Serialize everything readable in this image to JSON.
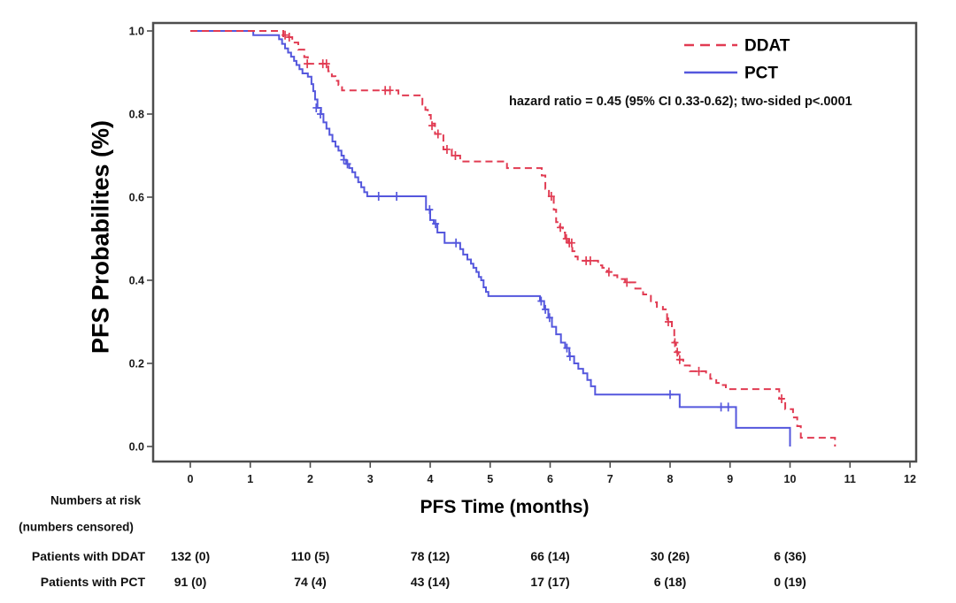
{
  "figure": {
    "ylabel": "PFS Probabilites (%)",
    "xlabel": "PFS Time (months)",
    "annotation": "hazard ratio = 0.45 (95% CI 0.33-0.62); two-sided p<.0001"
  },
  "chart_data": {
    "type": "line",
    "subtype": "kaplan-meier-step",
    "title": "",
    "xlabel": "PFS Time (months)",
    "ylabel": "PFS Probabilites (%)",
    "xlim": [
      0,
      12
    ],
    "ylim": [
      0,
      1
    ],
    "xticks": [
      0,
      1,
      2,
      3,
      4,
      5,
      6,
      7,
      8,
      9,
      10,
      11,
      12
    ],
    "yticks": [
      0.0,
      0.2,
      0.4,
      0.6,
      0.8,
      1.0
    ],
    "ytick_labels": [
      "0.0",
      "0.2",
      "0.4",
      "0.6",
      "0.8",
      "1.0"
    ],
    "grid": false,
    "legend_position": "top-right-inside",
    "annotation": "hazard ratio = 0.45 (95% CI 0.33-0.62); two-sided p<.0001",
    "axis_color": "#4d4d4d",
    "series": [
      {
        "name": "DDAT",
        "color": "#e13b52",
        "line": "dashed",
        "steps": [
          [
            0,
            1.0
          ],
          [
            1.55,
            0.985
          ],
          [
            1.7,
            0.972
          ],
          [
            1.8,
            0.955
          ],
          [
            1.9,
            0.937
          ],
          [
            1.96,
            0.921
          ],
          [
            2.3,
            0.903
          ],
          [
            2.36,
            0.891
          ],
          [
            2.42,
            0.88
          ],
          [
            2.47,
            0.87
          ],
          [
            2.53,
            0.857
          ],
          [
            3.47,
            0.845
          ],
          [
            3.87,
            0.823
          ],
          [
            3.92,
            0.81
          ],
          [
            3.96,
            0.798
          ],
          [
            4.01,
            0.777
          ],
          [
            4.08,
            0.752
          ],
          [
            4.22,
            0.715
          ],
          [
            4.36,
            0.7
          ],
          [
            4.5,
            0.686
          ],
          [
            5.28,
            0.67
          ],
          [
            5.86,
            0.652
          ],
          [
            5.92,
            0.62
          ],
          [
            5.98,
            0.602
          ],
          [
            6.06,
            0.57
          ],
          [
            6.1,
            0.54
          ],
          [
            6.16,
            0.527
          ],
          [
            6.21,
            0.515
          ],
          [
            6.25,
            0.5
          ],
          [
            6.3,
            0.49
          ],
          [
            6.37,
            0.47
          ],
          [
            6.42,
            0.457
          ],
          [
            6.46,
            0.447
          ],
          [
            6.8,
            0.436
          ],
          [
            6.87,
            0.43
          ],
          [
            6.95,
            0.42
          ],
          [
            7.05,
            0.412
          ],
          [
            7.12,
            0.403
          ],
          [
            7.25,
            0.395
          ],
          [
            7.42,
            0.38
          ],
          [
            7.55,
            0.366
          ],
          [
            7.68,
            0.347
          ],
          [
            7.78,
            0.336
          ],
          [
            7.88,
            0.33
          ],
          [
            7.95,
            0.3
          ],
          [
            8.03,
            0.287
          ],
          [
            8.07,
            0.25
          ],
          [
            8.1,
            0.227
          ],
          [
            8.14,
            0.209
          ],
          [
            8.22,
            0.195
          ],
          [
            8.33,
            0.181
          ],
          [
            8.6,
            0.174
          ],
          [
            8.67,
            0.163
          ],
          [
            8.77,
            0.153
          ],
          [
            8.85,
            0.148
          ],
          [
            8.93,
            0.138
          ],
          [
            9.82,
            0.115
          ],
          [
            9.92,
            0.09
          ],
          [
            10.05,
            0.07
          ],
          [
            10.12,
            0.049
          ],
          [
            10.18,
            0.021
          ],
          [
            10.75,
            0
          ]
        ],
        "censors": [
          [
            1.58,
            0.99
          ],
          [
            1.65,
            0.985
          ],
          [
            1.95,
            0.921
          ],
          [
            2.21,
            0.921
          ],
          [
            2.27,
            0.921
          ],
          [
            3.25,
            0.857
          ],
          [
            3.33,
            0.857
          ],
          [
            4.03,
            0.772
          ],
          [
            4.13,
            0.752
          ],
          [
            4.28,
            0.715
          ],
          [
            4.42,
            0.7
          ],
          [
            6.02,
            0.602
          ],
          [
            6.17,
            0.527
          ],
          [
            6.27,
            0.5
          ],
          [
            6.32,
            0.49
          ],
          [
            6.36,
            0.49
          ],
          [
            6.6,
            0.447
          ],
          [
            6.67,
            0.447
          ],
          [
            6.98,
            0.42
          ],
          [
            7.28,
            0.395
          ],
          [
            7.97,
            0.3
          ],
          [
            8.08,
            0.25
          ],
          [
            8.12,
            0.227
          ],
          [
            8.16,
            0.209
          ],
          [
            8.48,
            0.181
          ],
          [
            9.86,
            0.115
          ]
        ]
      },
      {
        "name": "PCT",
        "color": "#5457dd",
        "line": "solid",
        "steps": [
          [
            0,
            1.0
          ],
          [
            1.05,
            0.99
          ],
          [
            1.48,
            0.98
          ],
          [
            1.53,
            0.969
          ],
          [
            1.58,
            0.958
          ],
          [
            1.63,
            0.948
          ],
          [
            1.68,
            0.938
          ],
          [
            1.73,
            0.928
          ],
          [
            1.77,
            0.918
          ],
          [
            1.82,
            0.908
          ],
          [
            1.87,
            0.898
          ],
          [
            1.96,
            0.89
          ],
          [
            2.02,
            0.872
          ],
          [
            2.05,
            0.855
          ],
          [
            2.08,
            0.835
          ],
          [
            2.12,
            0.815
          ],
          [
            2.18,
            0.8
          ],
          [
            2.22,
            0.78
          ],
          [
            2.27,
            0.765
          ],
          [
            2.32,
            0.75
          ],
          [
            2.37,
            0.734
          ],
          [
            2.42,
            0.722
          ],
          [
            2.47,
            0.712
          ],
          [
            2.52,
            0.7
          ],
          [
            2.56,
            0.69
          ],
          [
            2.6,
            0.68
          ],
          [
            2.65,
            0.67
          ],
          [
            2.7,
            0.66
          ],
          [
            2.75,
            0.648
          ],
          [
            2.8,
            0.636
          ],
          [
            2.85,
            0.624
          ],
          [
            2.9,
            0.612
          ],
          [
            2.95,
            0.602
          ],
          [
            3.93,
            0.57
          ],
          [
            4.0,
            0.545
          ],
          [
            4.06,
            0.536
          ],
          [
            4.12,
            0.515
          ],
          [
            4.24,
            0.49
          ],
          [
            4.5,
            0.475
          ],
          [
            4.55,
            0.462
          ],
          [
            4.62,
            0.45
          ],
          [
            4.68,
            0.44
          ],
          [
            4.72,
            0.43
          ],
          [
            4.77,
            0.42
          ],
          [
            4.81,
            0.408
          ],
          [
            4.85,
            0.4
          ],
          [
            4.89,
            0.383
          ],
          [
            4.93,
            0.372
          ],
          [
            4.97,
            0.362
          ],
          [
            5.83,
            0.35
          ],
          [
            5.9,
            0.33
          ],
          [
            5.97,
            0.31
          ],
          [
            6.03,
            0.288
          ],
          [
            6.1,
            0.27
          ],
          [
            6.18,
            0.25
          ],
          [
            6.25,
            0.237
          ],
          [
            6.32,
            0.217
          ],
          [
            6.4,
            0.2
          ],
          [
            6.47,
            0.187
          ],
          [
            6.55,
            0.176
          ],
          [
            6.62,
            0.16
          ],
          [
            6.68,
            0.145
          ],
          [
            6.75,
            0.125
          ],
          [
            8.16,
            0.095
          ],
          [
            9.1,
            0.045
          ],
          [
            10.0,
            0
          ]
        ],
        "censors": [
          [
            2.1,
            0.815
          ],
          [
            2.17,
            0.8
          ],
          [
            2.56,
            0.69
          ],
          [
            2.62,
            0.68
          ],
          [
            3.14,
            0.602
          ],
          [
            3.44,
            0.602
          ],
          [
            3.99,
            0.57
          ],
          [
            4.09,
            0.536
          ],
          [
            4.43,
            0.49
          ],
          [
            5.85,
            0.35
          ],
          [
            5.92,
            0.33
          ],
          [
            5.99,
            0.31
          ],
          [
            6.28,
            0.237
          ],
          [
            6.33,
            0.217
          ],
          [
            8.0,
            0.125
          ],
          [
            8.85,
            0.095
          ],
          [
            8.97,
            0.095
          ]
        ]
      }
    ]
  },
  "risk_table": {
    "header_line1": "Numbers at risk",
    "header_line2": "(numbers censored)",
    "time_points": [
      0,
      2,
      4,
      6,
      8,
      10
    ],
    "rows": [
      {
        "label": "Patients with DDAT",
        "values": [
          "132 (0)",
          "110 (5)",
          "78 (12)",
          "66 (14)",
          "30 (26)",
          "6 (36)"
        ]
      },
      {
        "label": "Patients with PCT",
        "values": [
          "91 (0)",
          "74 (4)",
          "43 (14)",
          "17 (17)",
          "6 (18)",
          "0 (19)"
        ]
      }
    ]
  }
}
